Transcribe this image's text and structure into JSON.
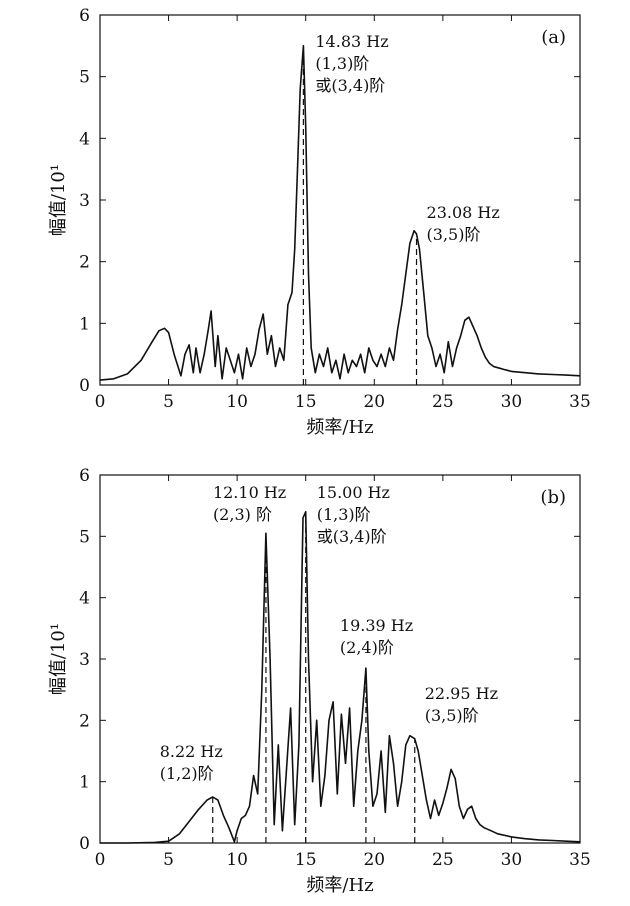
{
  "chart_data": [
    {
      "type": "line",
      "panel_label": "(a)",
      "xlabel": "频率/Hz",
      "ylabel": "幅值/10¹",
      "xlim": [
        0,
        35
      ],
      "ylim": [
        0,
        6
      ],
      "xticks": [
        0,
        5,
        10,
        15,
        20,
        25,
        30,
        35
      ],
      "yticks": [
        0,
        1,
        2,
        3,
        4,
        5,
        6
      ],
      "grid": false,
      "line_color": "#111111",
      "series": [
        {
          "name": "",
          "x": [
            0,
            1,
            2,
            3,
            3.8,
            4.3,
            4.7,
            5.0,
            5.4,
            5.9,
            6.2,
            6.5,
            6.8,
            7.0,
            7.3,
            7.6,
            7.9,
            8.1,
            8.4,
            8.6,
            8.9,
            9.2,
            9.5,
            9.8,
            10.1,
            10.4,
            10.7,
            11.0,
            11.3,
            11.6,
            11.9,
            12.2,
            12.5,
            12.8,
            13.1,
            13.4,
            13.7,
            14.0,
            14.2,
            14.4,
            14.6,
            14.83,
            15.0,
            15.2,
            15.4,
            15.7,
            16.0,
            16.3,
            16.6,
            16.9,
            17.2,
            17.5,
            17.8,
            18.1,
            18.4,
            18.7,
            19.0,
            19.3,
            19.6,
            19.9,
            20.2,
            20.5,
            20.8,
            21.1,
            21.4,
            21.7,
            22.0,
            22.3,
            22.6,
            22.9,
            23.08,
            23.3,
            23.6,
            23.9,
            24.2,
            24.5,
            24.8,
            25.1,
            25.4,
            25.7,
            26.0,
            26.3,
            26.6,
            26.9,
            27.2,
            27.5,
            27.8,
            28.1,
            28.4,
            28.7,
            29.0,
            29.5,
            30,
            31,
            32,
            33,
            34,
            35
          ],
          "y": [
            0.08,
            0.1,
            0.18,
            0.4,
            0.7,
            0.88,
            0.92,
            0.85,
            0.5,
            0.15,
            0.5,
            0.65,
            0.2,
            0.6,
            0.2,
            0.5,
            0.9,
            1.2,
            0.3,
            0.8,
            0.1,
            0.6,
            0.4,
            0.2,
            0.5,
            0.1,
            0.6,
            0.3,
            0.5,
            0.9,
            1.15,
            0.5,
            0.8,
            0.3,
            0.6,
            0.4,
            1.3,
            1.5,
            2.2,
            3.5,
            4.8,
            5.5,
            4.2,
            1.8,
            0.6,
            0.2,
            0.5,
            0.3,
            0.6,
            0.2,
            0.4,
            0.1,
            0.5,
            0.2,
            0.4,
            0.3,
            0.5,
            0.2,
            0.6,
            0.4,
            0.3,
            0.5,
            0.3,
            0.6,
            0.4,
            0.9,
            1.3,
            1.8,
            2.3,
            2.5,
            2.45,
            2.2,
            1.5,
            0.8,
            0.6,
            0.3,
            0.5,
            0.2,
            0.7,
            0.3,
            0.6,
            0.8,
            1.05,
            1.1,
            0.95,
            0.8,
            0.6,
            0.45,
            0.35,
            0.3,
            0.28,
            0.25,
            0.22,
            0.2,
            0.18,
            0.17,
            0.16,
            0.15
          ]
        }
      ],
      "annotations": [
        {
          "x": 14.83,
          "lines": [
            "14.83 Hz",
            "(1,3)阶",
            "或(3,4)阶"
          ]
        },
        {
          "x": 23.08,
          "lines": [
            "23.08 Hz",
            "(3,5)阶"
          ]
        }
      ],
      "dashed_markers": [
        {
          "x": 14.83,
          "y": 5.5
        },
        {
          "x": 23.08,
          "y": 2.4
        }
      ]
    },
    {
      "type": "line",
      "panel_label": "(b)",
      "xlabel": "频率/Hz",
      "ylabel": "幅值/10¹",
      "xlim": [
        0,
        35
      ],
      "ylim": [
        0,
        6
      ],
      "xticks": [
        0,
        5,
        10,
        15,
        20,
        25,
        30,
        35
      ],
      "yticks": [
        0,
        1,
        2,
        3,
        4,
        5,
        6
      ],
      "grid": false,
      "line_color": "#111111",
      "series": [
        {
          "name": "",
          "x": [
            0,
            2,
            4,
            5,
            5.8,
            6.5,
            7.2,
            7.8,
            8.22,
            8.6,
            9.0,
            9.4,
            9.8,
            10.0,
            10.3,
            10.6,
            10.9,
            11.2,
            11.5,
            11.8,
            12.1,
            12.4,
            12.7,
            13.0,
            13.3,
            13.6,
            13.9,
            14.2,
            14.5,
            14.8,
            15.0,
            15.2,
            15.5,
            15.8,
            16.1,
            16.4,
            16.7,
            17.0,
            17.3,
            17.6,
            17.9,
            18.2,
            18.5,
            18.8,
            19.1,
            19.39,
            19.6,
            19.9,
            20.2,
            20.5,
            20.8,
            21.1,
            21.4,
            21.7,
            22.0,
            22.3,
            22.6,
            22.95,
            23.2,
            23.5,
            23.8,
            24.1,
            24.4,
            24.7,
            25.0,
            25.3,
            25.6,
            25.9,
            26.2,
            26.5,
            26.8,
            27.1,
            27.4,
            27.7,
            28.0,
            28.5,
            29,
            30,
            31,
            32,
            33,
            34,
            35
          ],
          "y": [
            0,
            0,
            0.01,
            0.03,
            0.15,
            0.35,
            0.55,
            0.7,
            0.75,
            0.7,
            0.45,
            0.25,
            0.02,
            0.2,
            0.4,
            0.45,
            0.6,
            1.1,
            0.8,
            2.5,
            5.05,
            3.0,
            0.3,
            1.6,
            0.2,
            1.2,
            2.2,
            0.3,
            1.6,
            5.3,
            5.4,
            3.0,
            1.0,
            2.0,
            0.6,
            1.1,
            2.0,
            2.3,
            0.8,
            2.1,
            1.3,
            2.2,
            0.6,
            1.5,
            2.0,
            2.85,
            1.5,
            0.6,
            0.8,
            1.5,
            0.5,
            1.75,
            1.3,
            0.6,
            1.0,
            1.6,
            1.75,
            1.7,
            1.5,
            1.1,
            0.7,
            0.4,
            0.7,
            0.45,
            0.65,
            0.9,
            1.2,
            1.05,
            0.6,
            0.4,
            0.55,
            0.6,
            0.4,
            0.3,
            0.25,
            0.2,
            0.15,
            0.1,
            0.07,
            0.05,
            0.04,
            0.03,
            0.02
          ]
        }
      ],
      "annotations": [
        {
          "x": 8.22,
          "lines": [
            "8.22 Hz",
            "(1,2)阶"
          ]
        },
        {
          "x": 12.1,
          "lines": [
            "12.10 Hz",
            "(2,3) 阶"
          ]
        },
        {
          "x": 15.0,
          "lines": [
            "15.00 Hz",
            "(1,3)阶",
            "或(3,4)阶"
          ]
        },
        {
          "x": 19.39,
          "lines": [
            "19.39 Hz",
            "(2,4)阶"
          ]
        },
        {
          "x": 22.95,
          "lines": [
            "22.95 Hz",
            "(3,5)阶"
          ]
        }
      ],
      "dashed_markers": [
        {
          "x": 8.22,
          "y": 0.75
        },
        {
          "x": 12.1,
          "y": 5.05
        },
        {
          "x": 15.0,
          "y": 5.4
        },
        {
          "x": 19.39,
          "y": 2.85
        },
        {
          "x": 22.95,
          "y": 1.7
        }
      ]
    }
  ]
}
